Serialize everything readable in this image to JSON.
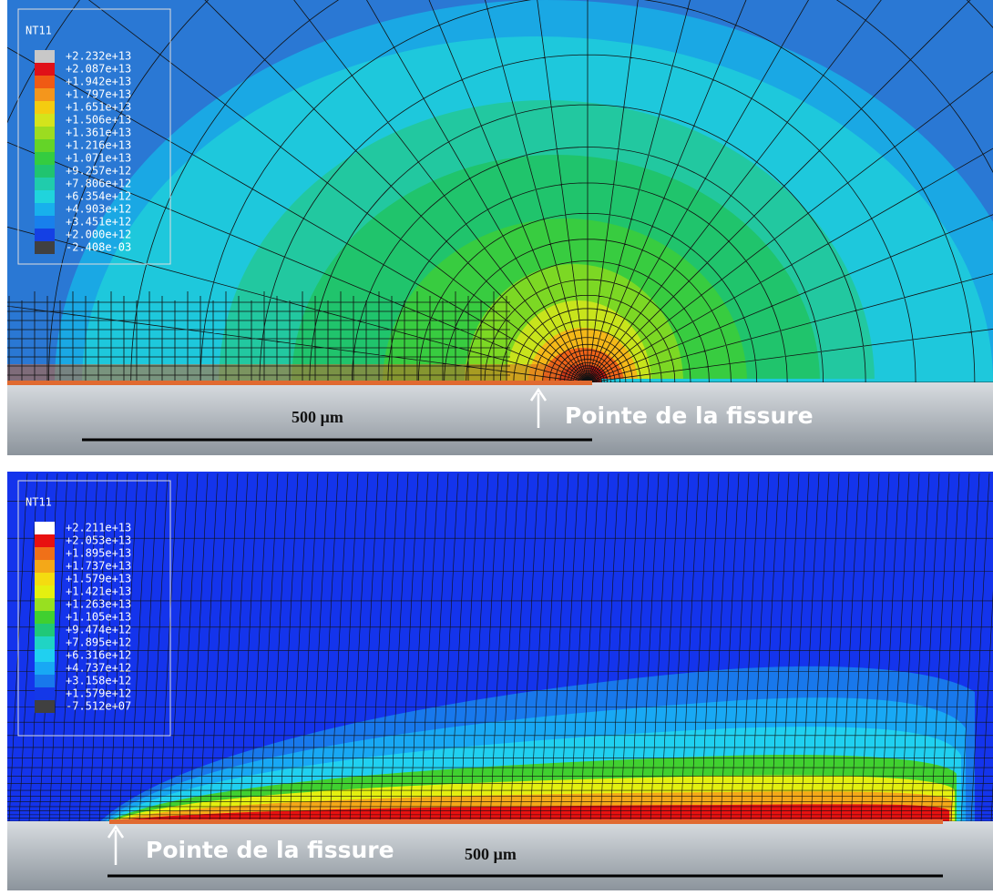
{
  "panels": [
    {
      "legend": {
        "title": "NT11",
        "labels": [
          "+2.232e+13",
          "+2.087e+13",
          "+1.942e+13",
          "+1.797e+13",
          "+1.651e+13",
          "+1.506e+13",
          "+1.361e+13",
          "+1.216e+13",
          "+1.071e+13",
          "+9.257e+12",
          "+7.806e+12",
          "+6.354e+12",
          "+4.903e+12",
          "+3.451e+12",
          "+2.000e+12",
          "-2.408e-03"
        ],
        "colors": [
          "#c8c8c8",
          "#e01018",
          "#f05a14",
          "#f4961c",
          "#f4cc10",
          "#d4e41c",
          "#9cdc20",
          "#64d428",
          "#34cc40",
          "#20c470",
          "#20ccac",
          "#20d4dc",
          "#18b0ec",
          "#1880ec",
          "#1440e4",
          "#404040"
        ]
      },
      "scale_bar": "500 µm",
      "annotation": "Pointe de la fissure"
    },
    {
      "legend": {
        "title": "NT11",
        "labels": [
          "+2.211e+13",
          "+2.053e+13",
          "+1.895e+13",
          "+1.737e+13",
          "+1.579e+13",
          "+1.421e+13",
          "+1.263e+13",
          "+1.105e+13",
          "+9.474e+12",
          "+7.895e+12",
          "+6.316e+12",
          "+4.737e+12",
          "+3.158e+12",
          "+1.579e+12",
          "-7.512e+07"
        ],
        "colors": [
          "#ffffff",
          "#e81010",
          "#f07018",
          "#f4a818",
          "#f4dc10",
          "#e4f010",
          "#98e020",
          "#40d030",
          "#20c878",
          "#20d4c4",
          "#20d0f0",
          "#18a8f4",
          "#1878ec",
          "#1438e8",
          "#404040"
        ]
      },
      "scale_bar": "500 µm",
      "annotation": "Pointe de la fissure"
    }
  ]
}
